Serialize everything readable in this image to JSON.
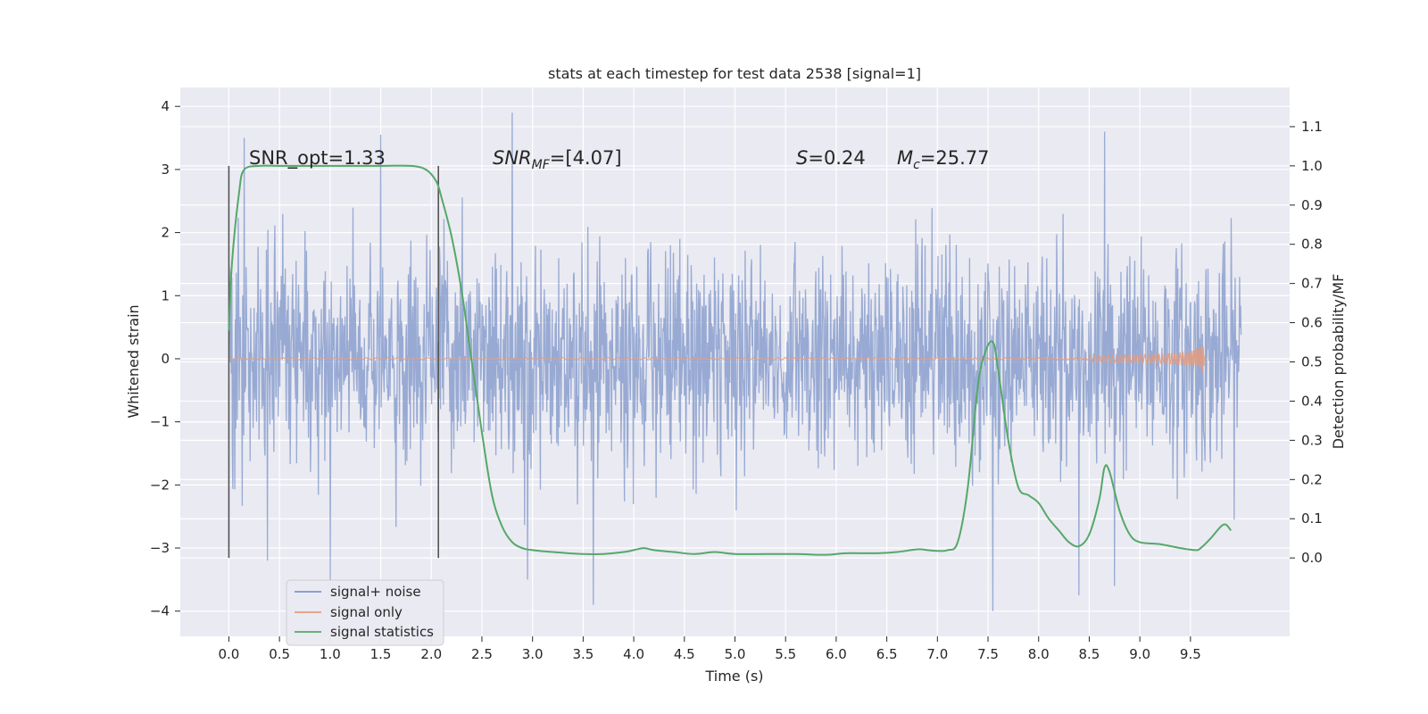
{
  "chart_data": {
    "type": "line",
    "title": "stats at each timestep for test data 2538 [signal=1]",
    "xlabel": "Time (s)",
    "ylabel": "Whitened strain",
    "ylabel_right": "Detection probability/MF",
    "xlim": [
      -0.48,
      10.48
    ],
    "ylim": [
      -4.4,
      4.3
    ],
    "ylim_right": [
      -0.2,
      1.2
    ],
    "x_ticks": [
      "0.0",
      "0.5",
      "1.0",
      "1.5",
      "2.0",
      "2.5",
      "3.0",
      "3.5",
      "4.0",
      "4.5",
      "5.0",
      "5.5",
      "6.0",
      "6.5",
      "7.0",
      "7.5",
      "8.0",
      "8.5",
      "9.0",
      "9.5"
    ],
    "y_ticks": [
      "4",
      "3",
      "2",
      "1",
      "0",
      "−1",
      "−2",
      "−3",
      "−4"
    ],
    "y_right_ticks": [
      "1.1",
      "1.0",
      "0.9",
      "0.8",
      "0.7",
      "0.6",
      "0.5",
      "0.4",
      "0.3",
      "0.2",
      "0.1",
      "0.0"
    ],
    "grid": true,
    "legend_position": "lower-left",
    "annotations": [
      {
        "text": "SNR_opt=1.33",
        "x": 0.2,
        "y": 3.1
      },
      {
        "text": "SNR_MF=[4.07]",
        "x": 2.6,
        "y": 3.1
      },
      {
        "text": "S=0.24",
        "x": 5.6,
        "y": 3.1
      },
      {
        "text": "M_c=25.77",
        "x": 6.6,
        "y": 3.1
      }
    ],
    "vertical_markers": [
      0.0,
      2.07
    ],
    "series": [
      {
        "name": "signal+ noise",
        "kind": "noise",
        "x_range": [
          0.0,
          10.0
        ],
        "typical_envelope": [
          -2.0,
          2.2
        ],
        "peaks": [
          {
            "x": 0.15,
            "y": 3.5
          },
          {
            "x": 1.5,
            "y": 3.55
          },
          {
            "x": 2.8,
            "y": 3.9
          },
          {
            "x": 8.65,
            "y": 3.6
          },
          {
            "x": 1.0,
            "y": -3.6
          },
          {
            "x": 2.95,
            "y": -3.5
          },
          {
            "x": 3.6,
            "y": -3.9
          },
          {
            "x": 7.55,
            "y": -4.0
          },
          {
            "x": 8.4,
            "y": -3.75
          },
          {
            "x": 8.75,
            "y": -3.6
          },
          {
            "x": 0.38,
            "y": -3.2
          }
        ]
      },
      {
        "name": "signal only",
        "kind": "chirp",
        "x_range": [
          0.0,
          9.65
        ],
        "max_amplitude": 0.3
      },
      {
        "name": "signal statistics",
        "axis": "right",
        "x": [
          0.0,
          0.03,
          0.1,
          0.15,
          0.3,
          0.5,
          1.0,
          1.5,
          1.8,
          1.95,
          2.05,
          2.1,
          2.2,
          2.3,
          2.4,
          2.5,
          2.6,
          2.7,
          2.8,
          2.9,
          3.0,
          3.2,
          3.5,
          3.7,
          3.9,
          4.0,
          4.1,
          4.2,
          4.4,
          4.6,
          4.8,
          5.0,
          5.3,
          5.6,
          5.9,
          6.1,
          6.4,
          6.6,
          6.8,
          6.9,
          7.0,
          7.1,
          7.2,
          7.3,
          7.4,
          7.48,
          7.55,
          7.6,
          7.7,
          7.8,
          7.9,
          8.0,
          8.1,
          8.2,
          8.3,
          8.4,
          8.5,
          8.6,
          8.65,
          8.7,
          8.8,
          8.9,
          9.0,
          9.2,
          9.4,
          9.55,
          9.6,
          9.7,
          9.8,
          9.85,
          9.9
        ],
        "y": [
          0.58,
          0.75,
          0.93,
          0.99,
          1.0,
          1.0,
          1.0,
          1.0,
          1.0,
          0.99,
          0.96,
          0.92,
          0.82,
          0.68,
          0.5,
          0.32,
          0.16,
          0.08,
          0.04,
          0.025,
          0.02,
          0.015,
          0.01,
          0.01,
          0.015,
          0.02,
          0.025,
          0.02,
          0.015,
          0.01,
          0.015,
          0.01,
          0.01,
          0.01,
          0.008,
          0.012,
          0.012,
          0.015,
          0.022,
          0.02,
          0.018,
          0.02,
          0.04,
          0.18,
          0.44,
          0.53,
          0.55,
          0.48,
          0.3,
          0.18,
          0.16,
          0.14,
          0.1,
          0.07,
          0.04,
          0.03,
          0.06,
          0.15,
          0.23,
          0.22,
          0.12,
          0.06,
          0.04,
          0.035,
          0.025,
          0.02,
          0.025,
          0.05,
          0.08,
          0.085,
          0.07
        ]
      }
    ],
    "colors": {
      "background": "#eaeaf2",
      "grid": "#ffffff",
      "noise": "#7c94c8",
      "signal": "#e49b7d",
      "stats": "#55a868",
      "marker": "#555555"
    }
  }
}
